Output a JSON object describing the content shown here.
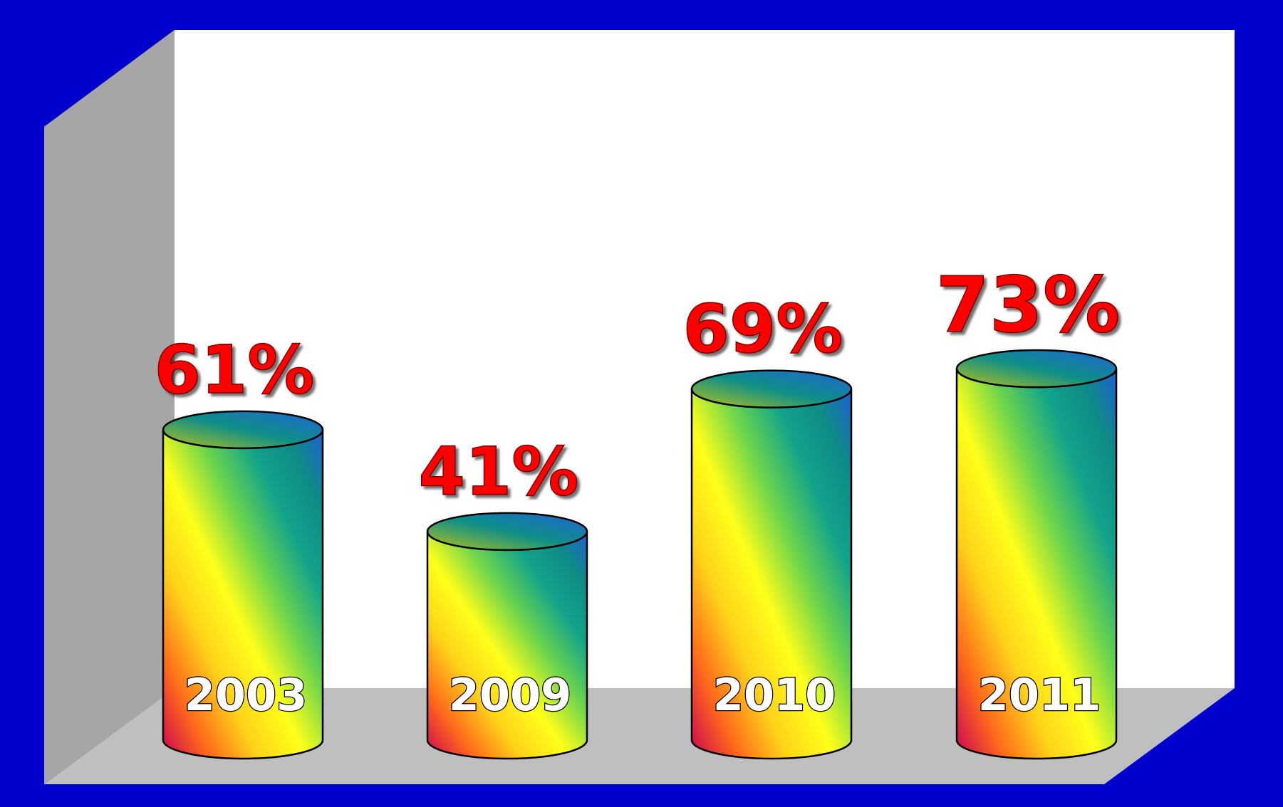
{
  "chart_data": {
    "type": "bar",
    "style": "3d-cylinder",
    "categories": [
      "2003",
      "2009",
      "2010",
      "2011"
    ],
    "values": [
      61,
      41,
      69,
      73
    ],
    "value_labels": [
      "61%",
      "41%",
      "69%",
      "73%"
    ],
    "title": "",
    "xlabel": "",
    "ylabel": "",
    "ylim": [
      0,
      100
    ],
    "grid": false,
    "legend": "none"
  },
  "colors": {
    "frame": "#0000cc",
    "plot_background": "#ffffff",
    "side_wall": "#a6a6a6",
    "floor": "#bfbfbf",
    "value_label": "#ff0000",
    "category_label": "#ffffff"
  }
}
